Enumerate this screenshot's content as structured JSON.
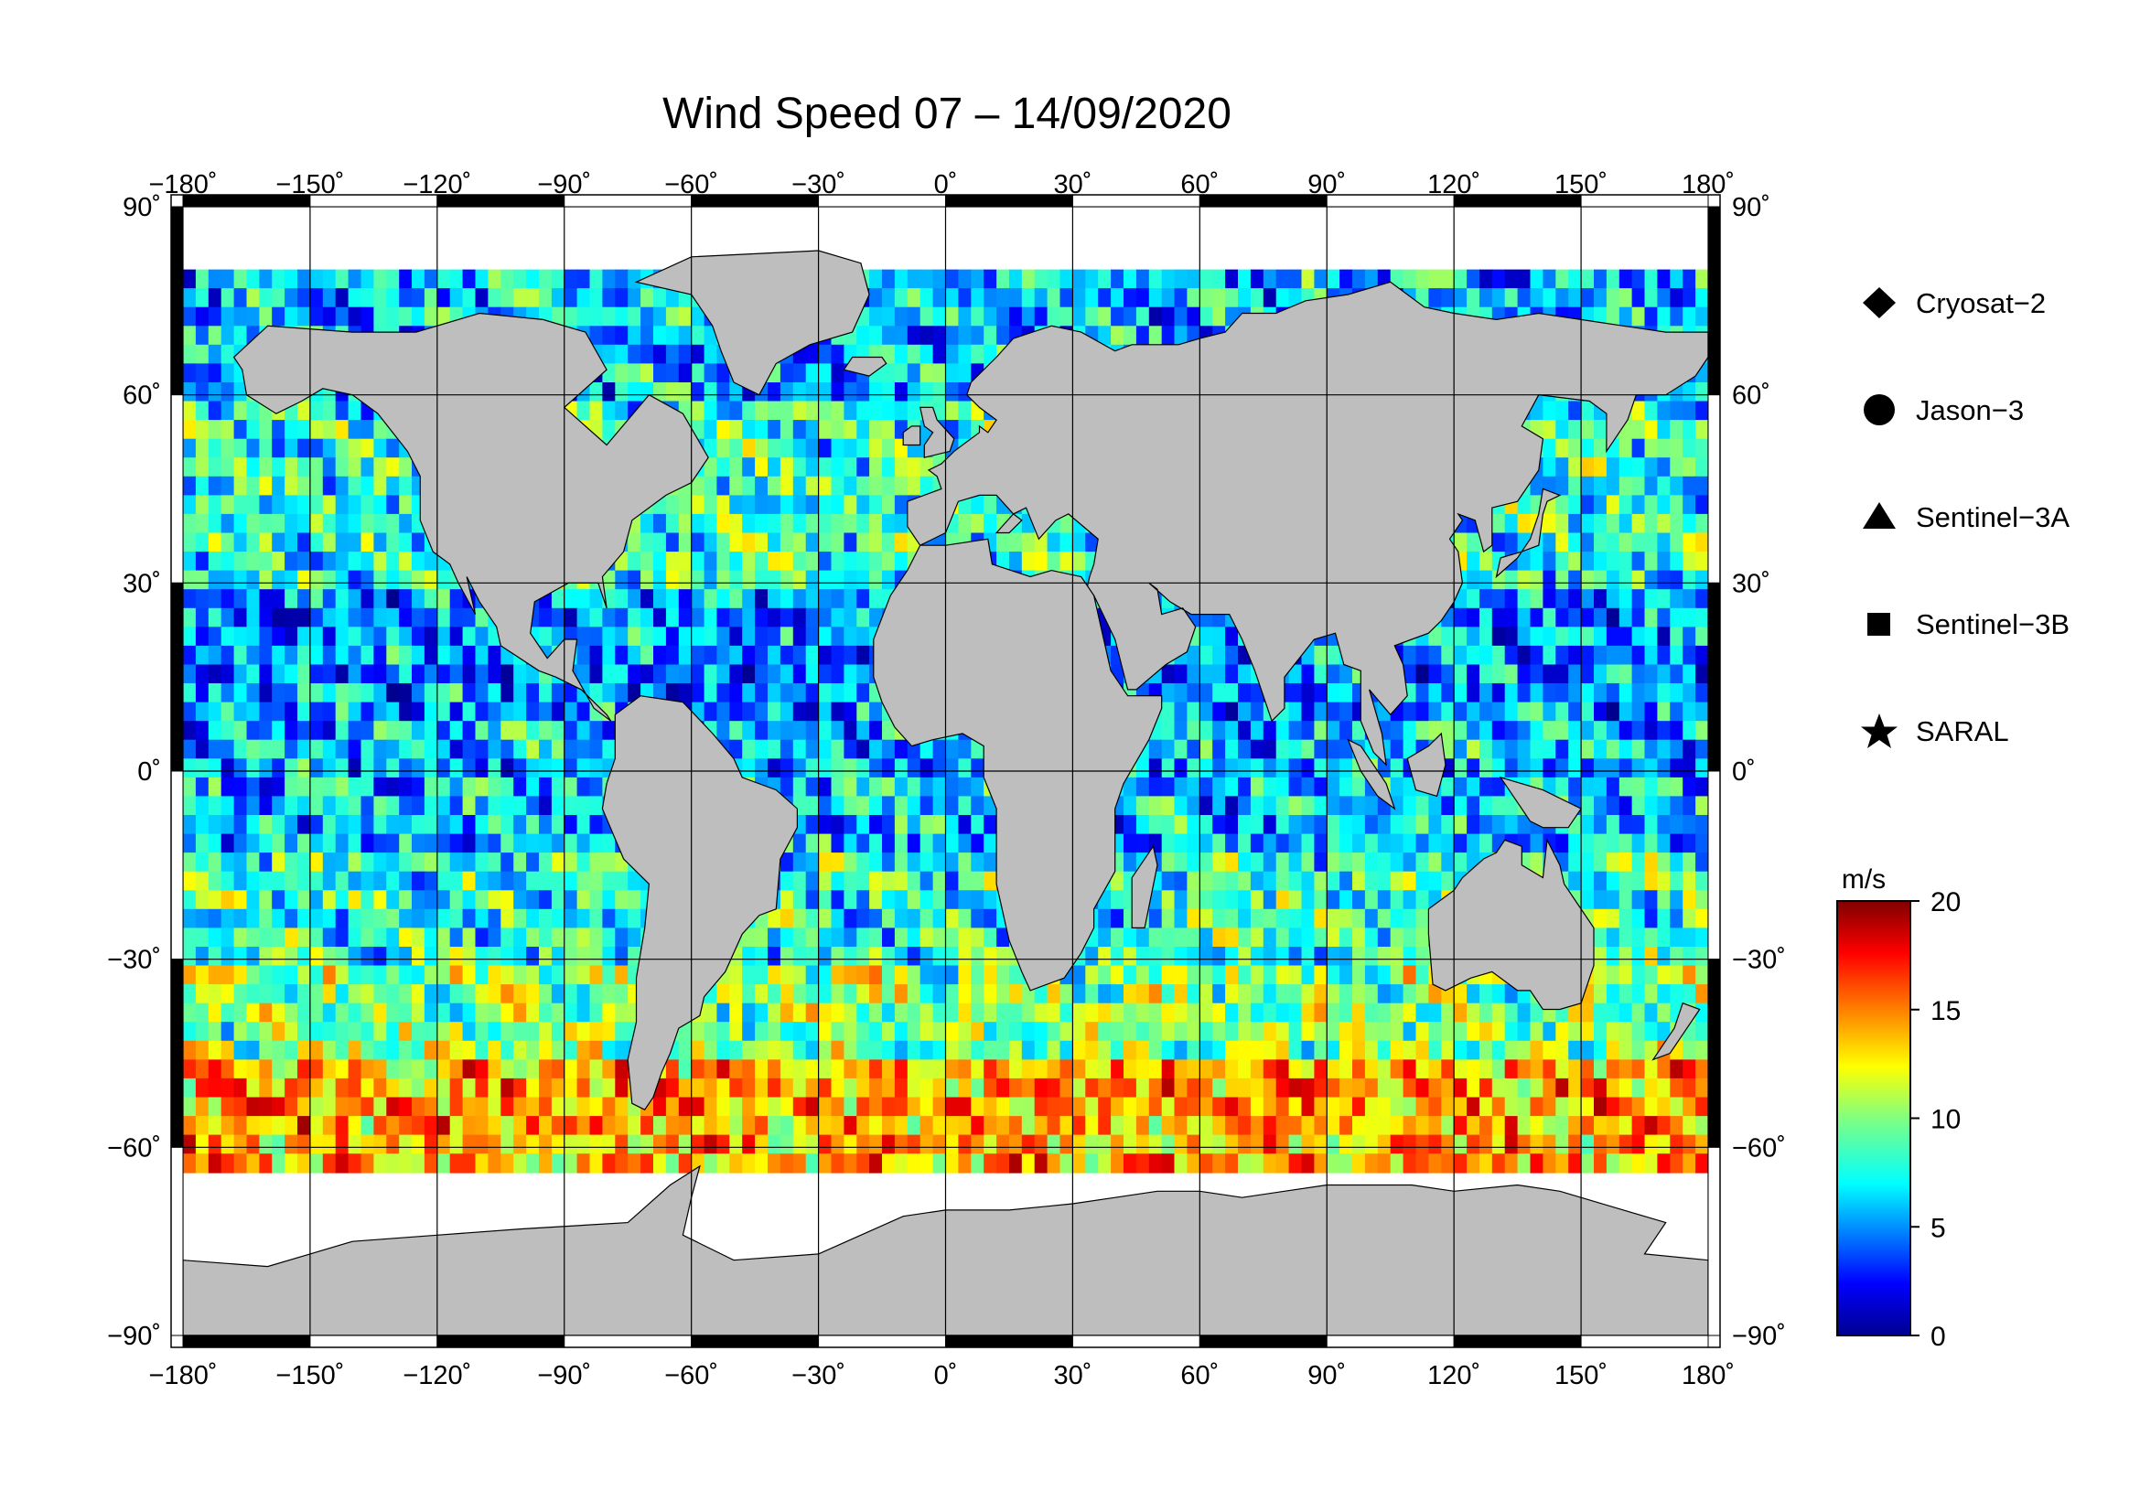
{
  "title": "Wind Speed 07 – 14/09/2020",
  "lon_ticks": [
    {
      "value": -180,
      "label": "−180˚"
    },
    {
      "value": -150,
      "label": "−150˚"
    },
    {
      "value": -120,
      "label": "−120˚"
    },
    {
      "value": -90,
      "label": "−90˚"
    },
    {
      "value": -60,
      "label": "−60˚"
    },
    {
      "value": -30,
      "label": "−30˚"
    },
    {
      "value": 0,
      "label": "0˚"
    },
    {
      "value": 30,
      "label": "30˚"
    },
    {
      "value": 60,
      "label": "60˚"
    },
    {
      "value": 90,
      "label": "90˚"
    },
    {
      "value": 120,
      "label": "120˚"
    },
    {
      "value": 150,
      "label": "150˚"
    },
    {
      "value": 180,
      "label": "180˚"
    }
  ],
  "lat_ticks": [
    {
      "value": 90,
      "label": "90˚"
    },
    {
      "value": 60,
      "label": "60˚"
    },
    {
      "value": 30,
      "label": "30˚"
    },
    {
      "value": 0,
      "label": "0˚"
    },
    {
      "value": -30,
      "label": "−30˚"
    },
    {
      "value": -60,
      "label": "−60˚"
    },
    {
      "value": -90,
      "label": "−90˚"
    }
  ],
  "map": {
    "projection": "equirectangular",
    "lon_range": [
      -180,
      180
    ],
    "lat_range": [
      -90,
      90
    ],
    "grid": true,
    "land_color": "#bebebe",
    "ocean_nodata_color": "#ffffff",
    "coastline_color": "#000000"
  },
  "legend": {
    "placement": "right",
    "items": [
      {
        "symbol": "diamond",
        "label": "Cryosat−2"
      },
      {
        "symbol": "circle",
        "label": "Jason−3"
      },
      {
        "symbol": "triangle",
        "label": "Sentinel−3A"
      },
      {
        "symbol": "square",
        "label": "Sentinel−3B"
      },
      {
        "symbol": "star",
        "label": "SARAL"
      }
    ]
  },
  "colorbar": {
    "unit": "m/s",
    "range": [
      0,
      20
    ],
    "ticks": [
      {
        "value": 20,
        "label": "20"
      },
      {
        "value": 15,
        "label": "15"
      },
      {
        "value": 10,
        "label": "10"
      },
      {
        "value": 5,
        "label": "5"
      },
      {
        "value": 0,
        "label": "0"
      }
    ],
    "colormap": [
      "#00008f",
      "#0000ff",
      "#0080ff",
      "#00ffff",
      "#80ff80",
      "#ffff00",
      "#ff8000",
      "#ff0000",
      "#800000"
    ]
  },
  "chart_data": {
    "type": "heatmap",
    "variable": "wind speed",
    "unit": "m/s",
    "latitude_bands": [
      {
        "lat_range": [
          60,
          80
        ],
        "typical_speed": 6
      },
      {
        "lat_range": [
          30,
          60
        ],
        "typical_speed": 8
      },
      {
        "lat_range": [
          10,
          30
        ],
        "typical_speed": 5
      },
      {
        "lat_range": [
          -10,
          10
        ],
        "typical_speed": 6
      },
      {
        "lat_range": [
          -30,
          -10
        ],
        "typical_speed": 8
      },
      {
        "lat_range": [
          -45,
          -30
        ],
        "typical_speed": 10
      },
      {
        "lat_range": [
          -62,
          -45
        ],
        "typical_speed": 14
      }
    ]
  }
}
